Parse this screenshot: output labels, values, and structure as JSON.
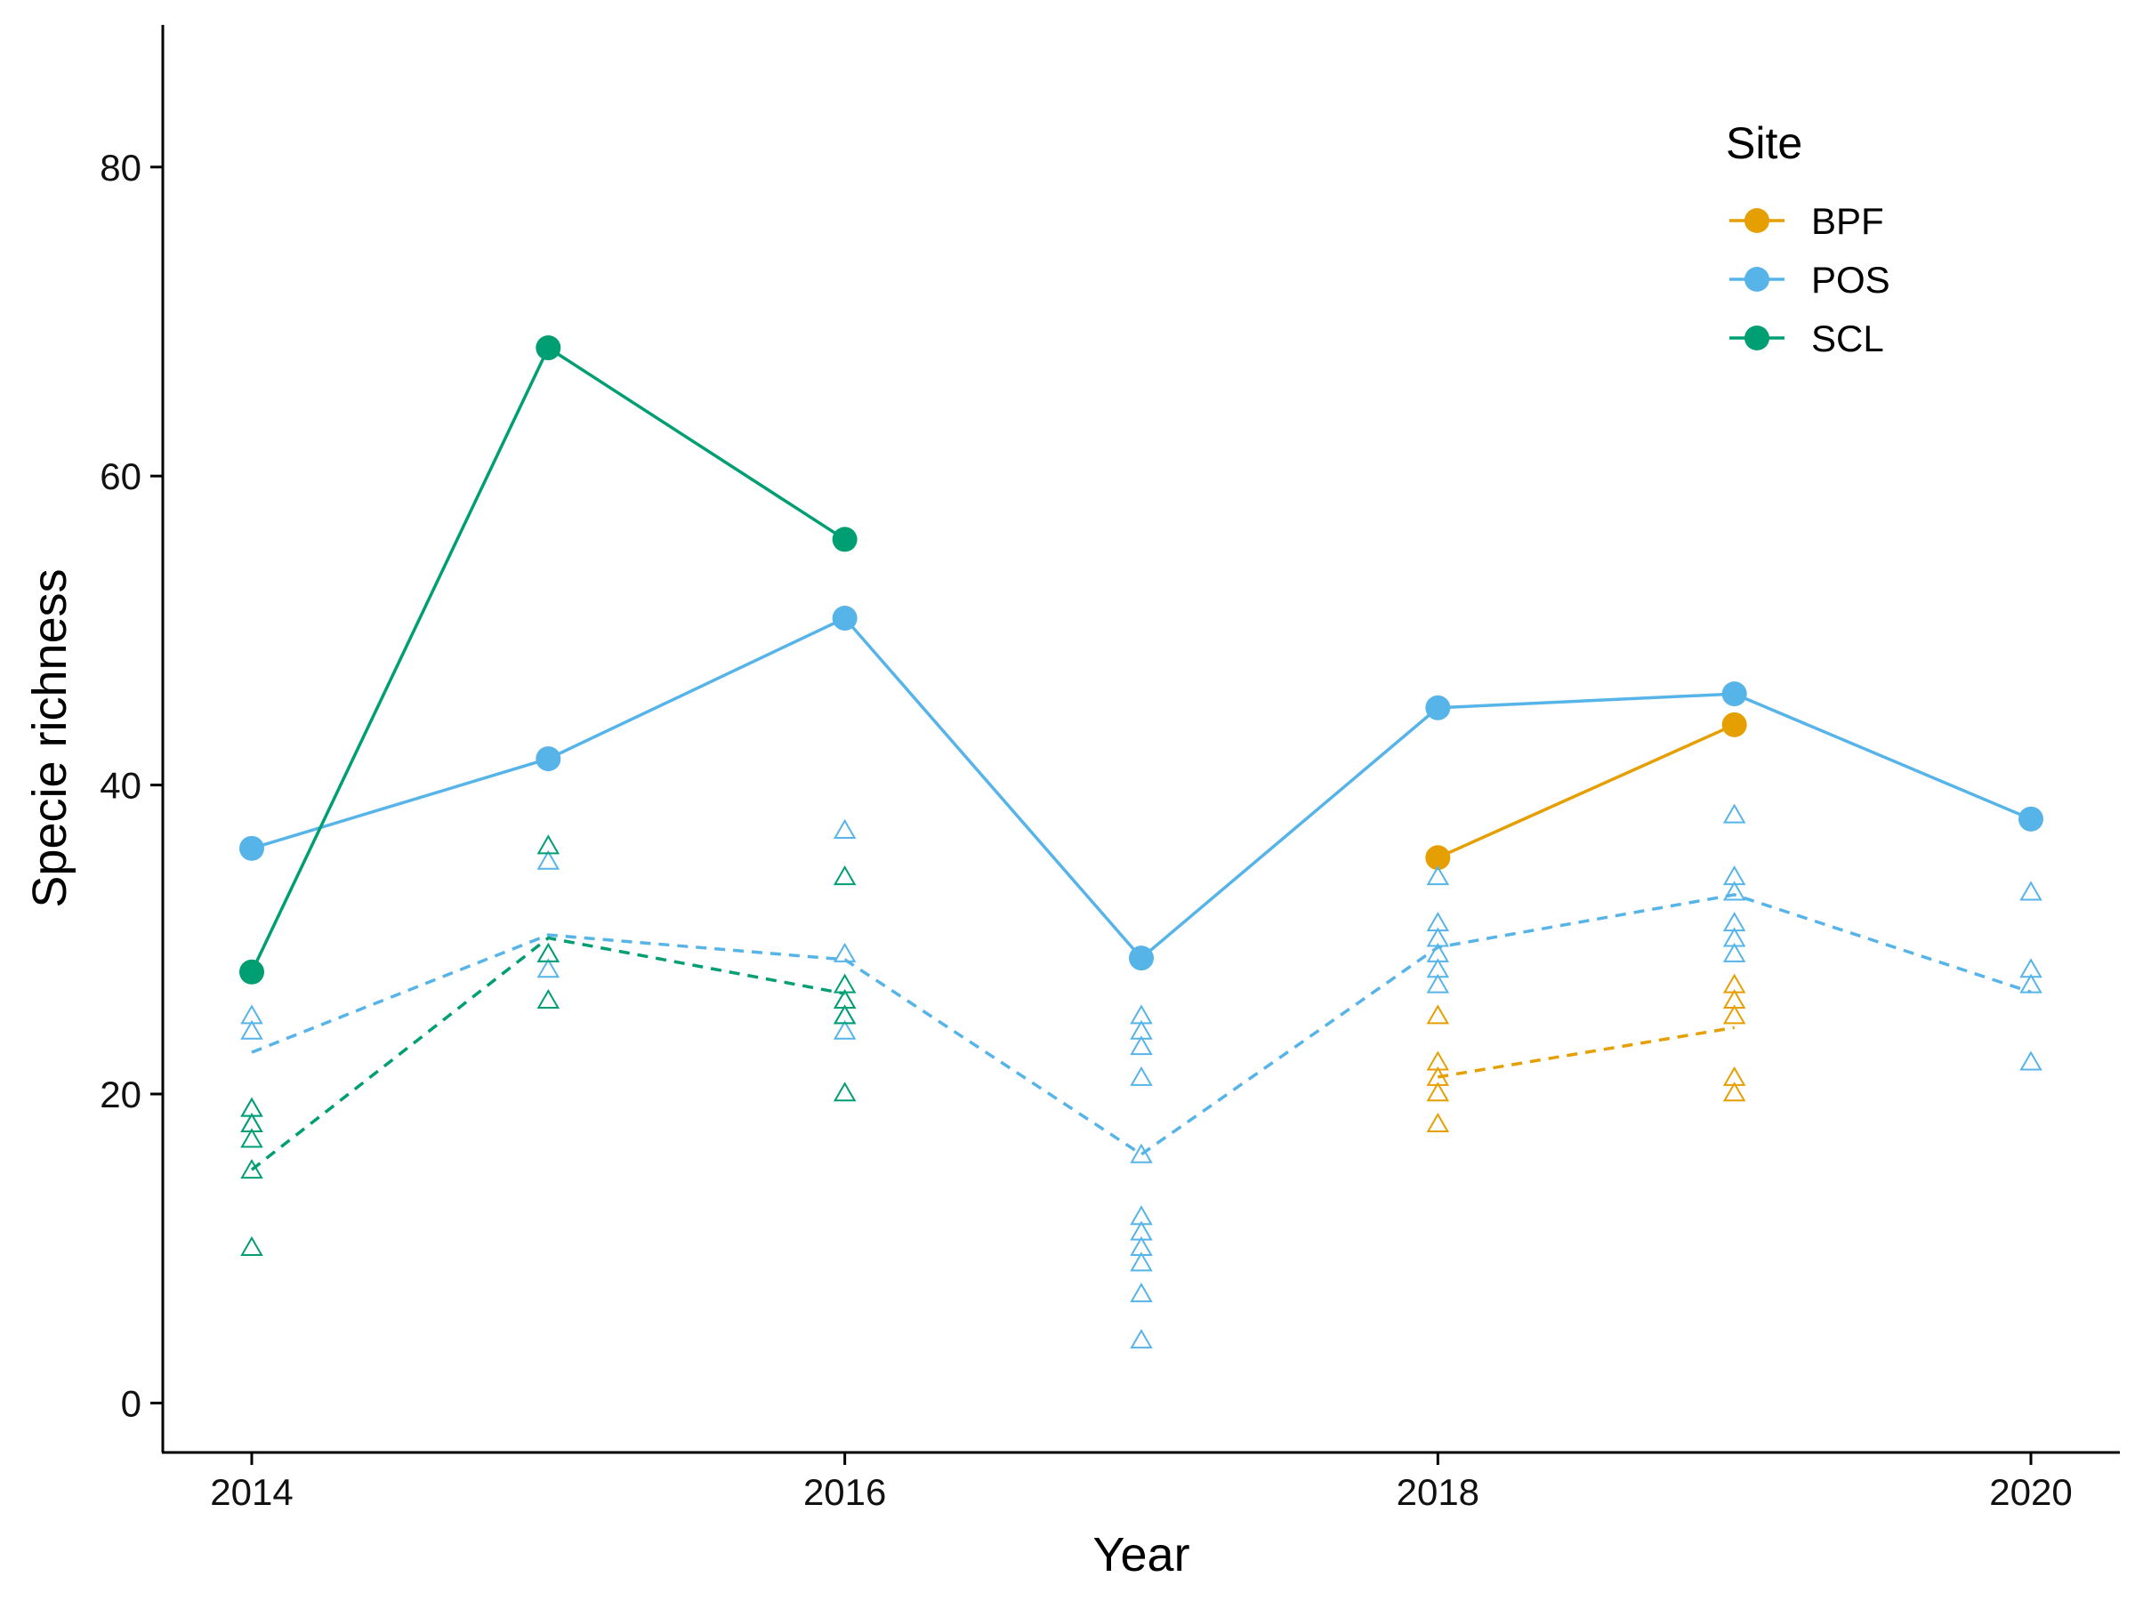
{
  "chart_data": {
    "type": "line",
    "xlabel": "Year",
    "ylabel": "Specie richness",
    "xlim": [
      2013.7,
      2020.3
    ],
    "ylim": [
      -3.2,
      89.2
    ],
    "x_ticks": [
      "2014",
      "2016",
      "2018",
      "2020"
    ],
    "y_ticks": [
      "0",
      "20",
      "40",
      "60",
      "80"
    ],
    "grid": false,
    "legend": {
      "title": "Site",
      "position": "top-right"
    },
    "series": [
      {
        "name": "BPF",
        "color": "#E69F00",
        "total": [
          [
            2018,
            35.3
          ],
          [
            2019,
            43.9
          ]
        ],
        "mean": [
          [
            2018,
            21.1
          ],
          [
            2019,
            24.3
          ]
        ],
        "samples": [
          [
            2018,
            25
          ],
          [
            2018,
            22
          ],
          [
            2018,
            21
          ],
          [
            2018,
            20
          ],
          [
            2018,
            18
          ],
          [
            2019,
            27
          ],
          [
            2019,
            26
          ],
          [
            2019,
            25
          ],
          [
            2019,
            21
          ],
          [
            2019,
            20
          ]
        ]
      },
      {
        "name": "POS",
        "color": "#56B4E9",
        "total": [
          [
            2014,
            35.9
          ],
          [
            2015,
            41.7
          ],
          [
            2016,
            50.8
          ],
          [
            2017,
            28.8
          ],
          [
            2018,
            45.0
          ],
          [
            2019,
            45.9
          ],
          [
            2020,
            37.8
          ]
        ],
        "mean": [
          [
            2014,
            22.7
          ],
          [
            2015,
            30.3
          ],
          [
            2016,
            28.7
          ],
          [
            2017,
            16.1
          ],
          [
            2018,
            29.5
          ],
          [
            2019,
            32.9
          ],
          [
            2020,
            26.6
          ]
        ],
        "samples": [
          [
            2014,
            25
          ],
          [
            2014,
            24
          ],
          [
            2014,
            19
          ],
          [
            2014,
            18
          ],
          [
            2015,
            35
          ],
          [
            2015,
            29
          ],
          [
            2015,
            28
          ],
          [
            2016,
            37
          ],
          [
            2016,
            29
          ],
          [
            2016,
            26
          ],
          [
            2016,
            25
          ],
          [
            2016,
            24
          ],
          [
            2017,
            25
          ],
          [
            2017,
            24
          ],
          [
            2017,
            23
          ],
          [
            2017,
            21
          ],
          [
            2017,
            16
          ],
          [
            2017,
            12
          ],
          [
            2017,
            11
          ],
          [
            2017,
            10
          ],
          [
            2017,
            9
          ],
          [
            2017,
            7
          ],
          [
            2017,
            4
          ],
          [
            2018,
            34
          ],
          [
            2018,
            31
          ],
          [
            2018,
            30
          ],
          [
            2018,
            29
          ],
          [
            2018,
            28
          ],
          [
            2018,
            27
          ],
          [
            2019,
            38
          ],
          [
            2019,
            34
          ],
          [
            2019,
            33
          ],
          [
            2019,
            31
          ],
          [
            2019,
            30
          ],
          [
            2019,
            29
          ],
          [
            2020,
            33
          ],
          [
            2020,
            28
          ],
          [
            2020,
            27
          ],
          [
            2020,
            22
          ]
        ]
      },
      {
        "name": "SCL",
        "color": "#009E73",
        "total": [
          [
            2014,
            27.9
          ],
          [
            2015,
            68.3
          ],
          [
            2016,
            55.9
          ]
        ],
        "mean": [
          [
            2014,
            15.1
          ],
          [
            2015,
            30.1
          ],
          [
            2016,
            26.5
          ]
        ],
        "samples": [
          [
            2014,
            19
          ],
          [
            2014,
            18
          ],
          [
            2014,
            17
          ],
          [
            2014,
            15
          ],
          [
            2014,
            10
          ],
          [
            2015,
            36
          ],
          [
            2015,
            29
          ],
          [
            2015,
            26
          ],
          [
            2016,
            34
          ],
          [
            2016,
            27
          ],
          [
            2016,
            26
          ],
          [
            2016,
            25
          ],
          [
            2016,
            20
          ]
        ]
      }
    ]
  }
}
